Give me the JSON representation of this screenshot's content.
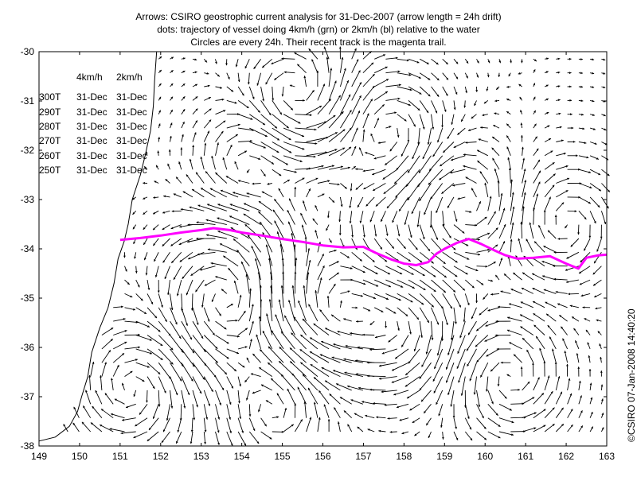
{
  "title": {
    "line1": "Arrows: CSIRO geostrophic current analysis for 31-Dec-2007 (arrow length = 24h drift)",
    "line2": "dots: trajectory of vessel doing 4km/h (grn) or 2km/h (bl) relative to the water",
    "line3": "Circles are every 24h. Their recent track is the magenta trail."
  },
  "credit": "©CSIRO 07-Jan-2008 14:40:20",
  "legend": {
    "col1_header": "4km/h",
    "col2_header": "2km/h",
    "rows": [
      {
        "heading": "300T",
        "speed4": "31-Dec",
        "speed2": "31-Dec"
      },
      {
        "heading": "290T",
        "speed4": "31-Dec",
        "speed2": "31-Dec"
      },
      {
        "heading": "280T",
        "speed4": "31-Dec",
        "speed2": "31-Dec"
      },
      {
        "heading": "270T",
        "speed4": "31-Dec",
        "speed2": "31-Dec"
      },
      {
        "heading": "260T",
        "speed4": "31-Dec",
        "speed2": "31-Dec"
      },
      {
        "heading": "250T",
        "speed4": "31-Dec",
        "speed2": "31-Dec"
      }
    ]
  },
  "colors": {
    "track": "#ff00ff",
    "arrows": "#000000",
    "coast": "#000000"
  },
  "chart_data": {
    "type": "map",
    "xlim": [
      149,
      163
    ],
    "ylim": [
      -38,
      -30
    ],
    "x_ticks": [
      "149",
      "150",
      "151",
      "152",
      "153",
      "154",
      "155",
      "156",
      "157",
      "158",
      "159",
      "160",
      "161",
      "162",
      "163"
    ],
    "y_ticks": [
      "-30",
      "-31",
      "-32",
      "-33",
      "-34",
      "-35",
      "-36",
      "-37",
      "-38"
    ],
    "x_tick_values": [
      149,
      150,
      151,
      152,
      153,
      154,
      155,
      156,
      157,
      158,
      159,
      160,
      161,
      162,
      163
    ],
    "y_tick_values": [
      -30,
      -31,
      -32,
      -33,
      -34,
      -35,
      -36,
      -37,
      -38
    ],
    "magenta_track": [
      [
        151.0,
        -33.82
      ],
      [
        151.5,
        -33.78
      ],
      [
        152.0,
        -33.73
      ],
      [
        152.5,
        -33.67
      ],
      [
        153.0,
        -33.62
      ],
      [
        153.3,
        -33.58
      ],
      [
        153.7,
        -33.62
      ],
      [
        154.0,
        -33.67
      ],
      [
        154.5,
        -33.73
      ],
      [
        155.0,
        -33.8
      ],
      [
        155.5,
        -33.86
      ],
      [
        156.0,
        -33.93
      ],
      [
        156.5,
        -33.97
      ],
      [
        157.0,
        -33.96
      ],
      [
        157.3,
        -34.08
      ],
      [
        157.7,
        -34.22
      ],
      [
        158.0,
        -34.3
      ],
      [
        158.3,
        -34.33
      ],
      [
        158.6,
        -34.27
      ],
      [
        158.8,
        -34.1
      ],
      [
        159.0,
        -34.0
      ],
      [
        159.3,
        -33.88
      ],
      [
        159.6,
        -33.8
      ],
      [
        159.9,
        -33.9
      ],
      [
        160.2,
        -34.02
      ],
      [
        160.5,
        -34.13
      ],
      [
        160.8,
        -34.2
      ],
      [
        161.2,
        -34.18
      ],
      [
        161.6,
        -34.15
      ],
      [
        162.0,
        -34.3
      ],
      [
        162.3,
        -34.4
      ],
      [
        162.5,
        -34.18
      ],
      [
        162.8,
        -34.13
      ],
      [
        163.0,
        -34.12
      ]
    ],
    "coastline": [
      [
        151.9,
        -30.0
      ],
      [
        151.85,
        -30.6
      ],
      [
        151.82,
        -31.1
      ],
      [
        151.75,
        -31.6
      ],
      [
        151.62,
        -32.1
      ],
      [
        151.5,
        -32.5
      ],
      [
        151.3,
        -33.0
      ],
      [
        151.2,
        -33.5
      ],
      [
        151.1,
        -33.85
      ],
      [
        150.95,
        -34.2
      ],
      [
        150.85,
        -34.7
      ],
      [
        150.7,
        -35.2
      ],
      [
        150.5,
        -35.6
      ],
      [
        150.3,
        -36.1
      ],
      [
        150.2,
        -36.6
      ],
      [
        150.05,
        -37.0
      ],
      [
        149.95,
        -37.3
      ],
      [
        149.75,
        -37.6
      ],
      [
        149.4,
        -37.82
      ],
      [
        149.0,
        -37.9
      ]
    ],
    "eddies": [
      {
        "center": [
          155.3,
          -30.9
        ],
        "radius": 0.8,
        "direction": "ccw"
      },
      {
        "center": [
          157.6,
          -31.6
        ],
        "radius": 0.9,
        "direction": "cw"
      },
      {
        "center": [
          154.1,
          -32.3
        ],
        "radius": 0.8,
        "direction": "cw"
      },
      {
        "center": [
          155.9,
          -33.0
        ],
        "radius": 0.8,
        "direction": "cw"
      },
      {
        "center": [
          159.5,
          -33.1
        ],
        "radius": 0.8,
        "direction": "ccw"
      },
      {
        "center": [
          162.0,
          -33.5
        ],
        "radius": 0.8,
        "direction": "cw"
      },
      {
        "center": [
          153.6,
          -35.0
        ],
        "radius": 1.0,
        "direction": "ccw"
      },
      {
        "center": [
          156.2,
          -35.2
        ],
        "radius": 1.0,
        "direction": "cw"
      },
      {
        "center": [
          158.0,
          -35.6
        ],
        "radius": 0.9,
        "direction": "cw"
      },
      {
        "center": [
          151.3,
          -36.8
        ],
        "radius": 0.9,
        "direction": "cw"
      },
      {
        "center": [
          154.8,
          -37.3
        ],
        "radius": 0.9,
        "direction": "ccw"
      },
      {
        "center": [
          160.6,
          -36.6
        ],
        "radius": 0.9,
        "direction": "ccw"
      }
    ],
    "grid": false
  }
}
